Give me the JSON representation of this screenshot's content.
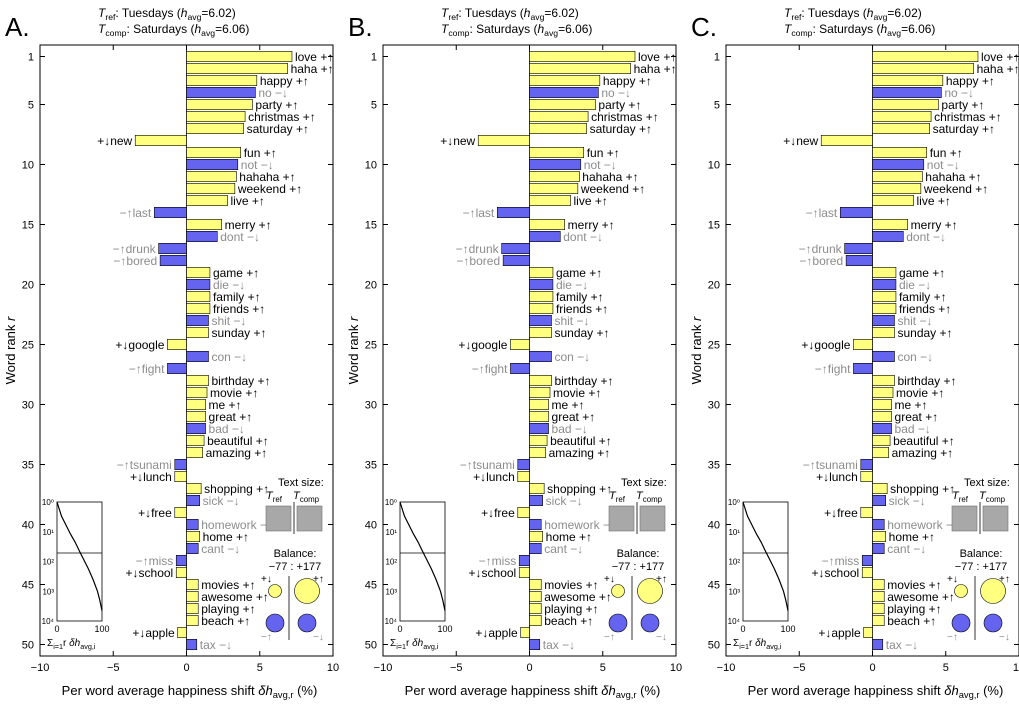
{
  "figure": {
    "panel_letters": [
      "A.",
      "B.",
      "C."
    ],
    "header_ref": "T_ref: Tuesdays (h_avg=6.02)",
    "header_comp": "T_comp: Saturdays (h_avg=6.06)",
    "ylabel": "Word rank r",
    "xlabel": "Per word average happiness shift δh_avg,r (%)",
    "text_size_label": "Text size:",
    "tref_label": "T_ref",
    "tcomp_label": "T_comp",
    "balance_label": "Balance:",
    "balance_value": "−77 : +177",
    "symbol_plus_up": "+↑",
    "symbol_plus_down": "+↓",
    "symbol_minus_up": "−↑",
    "symbol_minus_down": "−↓",
    "inset_xlabel": "Σ_{i=1}^{r} δh_avg,i",
    "inset_xticks": [
      "0",
      "100"
    ],
    "inset_yticks": [
      "10⁰",
      "10¹",
      "10²",
      "10³",
      "10⁴"
    ]
  },
  "colors": {
    "positive": "#ffff80",
    "negative": "#6464f0",
    "grey_text": "#8c8c8c"
  },
  "chart_data": [
    {
      "type": "bar",
      "orientation": "horizontal",
      "xlim": [
        -10,
        10
      ],
      "ylim": [
        51,
        0
      ],
      "xticks": [
        "−10",
        "−5",
        "0",
        "5",
        "10"
      ],
      "yticks": [
        "1",
        "5",
        "10",
        "15",
        "20",
        "25",
        "30",
        "35",
        "40",
        "45",
        "50"
      ],
      "bars": [
        {
          "rank": 1,
          "word": "love",
          "type": "+↑",
          "value": 7.2
        },
        {
          "rank": 2,
          "word": "haha",
          "type": "+↑",
          "value": 6.9
        },
        {
          "rank": 3,
          "word": "happy",
          "type": "+↑",
          "value": 4.8
        },
        {
          "rank": 4,
          "word": "no",
          "type": "−↓",
          "value": 4.7
        },
        {
          "rank": 5,
          "word": "party",
          "type": "+↑",
          "value": 4.5
        },
        {
          "rank": 6,
          "word": "christmas",
          "type": "+↑",
          "value": 4.0
        },
        {
          "rank": 7,
          "word": "saturday",
          "type": "+↑",
          "value": 3.9
        },
        {
          "rank": 8,
          "word": "new",
          "type": "+↓",
          "value": -3.5
        },
        {
          "rank": 9,
          "word": "fun",
          "type": "+↑",
          "value": 3.7
        },
        {
          "rank": 10,
          "word": "not",
          "type": "−↓",
          "value": 3.5
        },
        {
          "rank": 11,
          "word": "hahaha",
          "type": "+↑",
          "value": 3.4
        },
        {
          "rank": 12,
          "word": "weekend",
          "type": "+↑",
          "value": 3.3
        },
        {
          "rank": 13,
          "word": "live",
          "type": "+↑",
          "value": 2.8
        },
        {
          "rank": 14,
          "word": "last",
          "type": "−↑",
          "value": -2.2
        },
        {
          "rank": 15,
          "word": "merry",
          "type": "+↑",
          "value": 2.4
        },
        {
          "rank": 16,
          "word": "dont",
          "type": "−↓",
          "value": 2.1
        },
        {
          "rank": 17,
          "word": "drunk",
          "type": "−↑",
          "value": -1.9
        },
        {
          "rank": 18,
          "word": "bored",
          "type": "−↑",
          "value": -1.8
        },
        {
          "rank": 19,
          "word": "game",
          "type": "+↑",
          "value": 1.6
        },
        {
          "rank": 20,
          "word": "die",
          "type": "−↓",
          "value": 1.6
        },
        {
          "rank": 21,
          "word": "family",
          "type": "+↑",
          "value": 1.6
        },
        {
          "rank": 22,
          "word": "friends",
          "type": "+↑",
          "value": 1.6
        },
        {
          "rank": 23,
          "word": "shit",
          "type": "−↓",
          "value": 1.5
        },
        {
          "rank": 24,
          "word": "sunday",
          "type": "+↑",
          "value": 1.5
        },
        {
          "rank": 25,
          "word": "google",
          "type": "+↓",
          "value": -1.3
        },
        {
          "rank": 26,
          "word": "con",
          "type": "−↓",
          "value": 1.5
        },
        {
          "rank": 27,
          "word": "fight",
          "type": "−↑",
          "value": -1.3
        },
        {
          "rank": 28,
          "word": "birthday",
          "type": "+↑",
          "value": 1.5
        },
        {
          "rank": 29,
          "word": "movie",
          "type": "+↑",
          "value": 1.4
        },
        {
          "rank": 30,
          "word": "me",
          "type": "+↑",
          "value": 1.3
        },
        {
          "rank": 31,
          "word": "great",
          "type": "+↑",
          "value": 1.3
        },
        {
          "rank": 32,
          "word": "bad",
          "type": "−↓",
          "value": 1.3
        },
        {
          "rank": 33,
          "word": "beautiful",
          "type": "+↑",
          "value": 1.2
        },
        {
          "rank": 34,
          "word": "amazing",
          "type": "+↑",
          "value": 1.1
        },
        {
          "rank": 35,
          "word": "tsunami",
          "type": "−↑",
          "value": -0.8
        },
        {
          "rank": 36,
          "word": "lunch",
          "type": "+↓",
          "value": -0.8
        },
        {
          "rank": 37,
          "word": "shopping",
          "type": "+↑",
          "value": 1.0
        },
        {
          "rank": 38,
          "word": "sick",
          "type": "−↓",
          "value": 0.9
        },
        {
          "rank": 39,
          "word": "free",
          "type": "+↓",
          "value": -0.8
        },
        {
          "rank": 40,
          "word": "homework",
          "type": "−↓",
          "value": 0.8
        },
        {
          "rank": 41,
          "word": "home",
          "type": "+↑",
          "value": 0.9
        },
        {
          "rank": 42,
          "word": "cant",
          "type": "−↓",
          "value": 0.8
        },
        {
          "rank": 43,
          "word": "miss",
          "type": "−↑",
          "value": -0.7
        },
        {
          "rank": 44,
          "word": "school",
          "type": "+↓",
          "value": -0.7
        },
        {
          "rank": 45,
          "word": "movies",
          "type": "+↑",
          "value": 0.8
        },
        {
          "rank": 46,
          "word": "awesome",
          "type": "+↑",
          "value": 0.8
        },
        {
          "rank": 47,
          "word": "playing",
          "type": "+↑",
          "value": 0.8
        },
        {
          "rank": 48,
          "word": "beach",
          "type": "+↑",
          "value": 0.8
        },
        {
          "rank": 49,
          "word": "apple",
          "type": "+↓",
          "value": -0.6
        },
        {
          "rank": 50,
          "word": "tax",
          "type": "−↓",
          "value": 0.7
        }
      ],
      "inset": {
        "type": "line",
        "xlim": [
          0,
          100
        ],
        "ylim_log": [
          1,
          10000
        ],
        "series_note": "cumulative happiness shift vs. rank (log scale)",
        "x": [
          0,
          10,
          20,
          30,
          40,
          50,
          60,
          70,
          80,
          90,
          95,
          100
        ],
        "y": [
          1,
          3,
          6,
          12,
          22,
          45,
          90,
          180,
          400,
          1000,
          2000,
          4500
        ],
        "final_value": 100
      }
    }
  ]
}
